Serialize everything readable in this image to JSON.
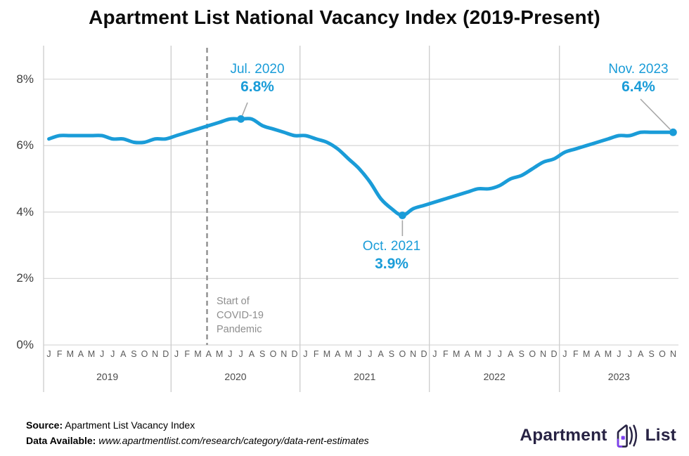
{
  "title": "Apartment List National Vacancy Index (2019-Present)",
  "chart_data": {
    "type": "line",
    "title": "Apartment List National Vacancy Index (2019-Present)",
    "xlabel": "",
    "ylabel": "",
    "ylim": [
      0,
      9
    ],
    "grid": true,
    "legend": "none",
    "line_color": "#1a9cd8",
    "ytick_labels": [
      "0%",
      "2%",
      "4%",
      "6%",
      "8%"
    ],
    "ytick_values": [
      0,
      2,
      4,
      6,
      8
    ],
    "years": [
      {
        "label": "2019",
        "month_labels": [
          "J",
          "F",
          "M",
          "A",
          "M",
          "J",
          "J",
          "A",
          "S",
          "O",
          "N",
          "D"
        ],
        "values": [
          6.2,
          6.3,
          6.3,
          6.3,
          6.3,
          6.3,
          6.2,
          6.2,
          6.1,
          6.1,
          6.2,
          6.2
        ]
      },
      {
        "label": "2020",
        "month_labels": [
          "J",
          "F",
          "M",
          "A",
          "M",
          "J",
          "J",
          "A",
          "S",
          "O",
          "N",
          "D"
        ],
        "values": [
          6.3,
          6.4,
          6.5,
          6.6,
          6.7,
          6.8,
          6.8,
          6.8,
          6.6,
          6.5,
          6.4,
          6.3
        ]
      },
      {
        "label": "2021",
        "month_labels": [
          "J",
          "F",
          "M",
          "A",
          "M",
          "J",
          "J",
          "A",
          "S",
          "O",
          "N",
          "D"
        ],
        "values": [
          6.3,
          6.2,
          6.1,
          5.9,
          5.6,
          5.3,
          4.9,
          4.4,
          4.1,
          3.9,
          4.1,
          4.2
        ]
      },
      {
        "label": "2022",
        "month_labels": [
          "J",
          "F",
          "M",
          "A",
          "M",
          "J",
          "J",
          "A",
          "S",
          "O",
          "N",
          "D"
        ],
        "values": [
          4.3,
          4.4,
          4.5,
          4.6,
          4.7,
          4.7,
          4.8,
          5.0,
          5.1,
          5.3,
          5.5,
          5.6
        ]
      },
      {
        "label": "2023",
        "month_labels": [
          "J",
          "F",
          "M",
          "A",
          "M",
          "J",
          "J",
          "A",
          "S",
          "O",
          "N"
        ],
        "values": [
          5.8,
          5.9,
          6.0,
          6.1,
          6.2,
          6.3,
          6.3,
          6.4,
          6.4,
          6.4,
          6.4
        ]
      }
    ],
    "series": [
      {
        "name": "National Vacancy Index",
        "values": [
          6.2,
          6.3,
          6.3,
          6.3,
          6.3,
          6.3,
          6.2,
          6.2,
          6.1,
          6.1,
          6.2,
          6.2,
          6.3,
          6.4,
          6.5,
          6.6,
          6.7,
          6.8,
          6.8,
          6.8,
          6.6,
          6.5,
          6.4,
          6.3,
          6.3,
          6.2,
          6.1,
          5.9,
          5.6,
          5.3,
          4.9,
          4.4,
          4.1,
          3.9,
          4.1,
          4.2,
          4.3,
          4.4,
          4.5,
          4.6,
          4.7,
          4.7,
          4.8,
          5.0,
          5.1,
          5.3,
          5.5,
          5.6,
          5.8,
          5.9,
          6.0,
          6.1,
          6.2,
          6.3,
          6.3,
          6.4,
          6.4,
          6.4,
          6.4
        ]
      }
    ],
    "annotations": [
      {
        "date": "Jul. 2020",
        "value_label": "6.8%",
        "value": 6.8,
        "month_index": 18
      },
      {
        "date": "Oct. 2021",
        "value_label": "3.9%",
        "value": 3.9,
        "month_index": 33
      },
      {
        "date": "Nov. 2023",
        "value_label": "6.4%",
        "value": 6.4,
        "month_index": 58
      }
    ],
    "event_line": {
      "lines": [
        "Start of",
        "COVID-19",
        "Pandemic"
      ],
      "position": "Apr 2020"
    }
  },
  "footer": {
    "source_label": "Source:",
    "source_value": "Apartment List Vacancy Index",
    "data_label": "Data Available:",
    "data_value": "www.apartmentlist.com/research/category/data-rent-estimates"
  },
  "logo": {
    "word1": "Apartment",
    "word2": "List"
  }
}
